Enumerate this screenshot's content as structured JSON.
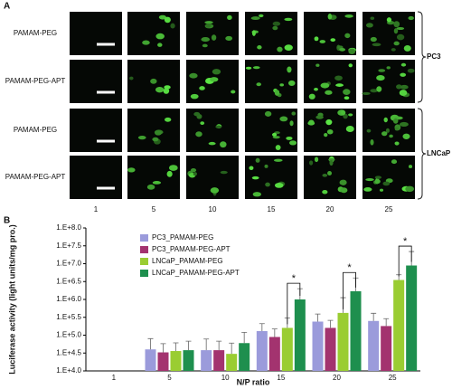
{
  "panel_a": {
    "label": "A",
    "rows": [
      "PAMAM-PEG",
      "PAMAM-PEG-APT",
      "PAMAM-PEG",
      "PAMAM-PEG-APT"
    ],
    "columns": [
      "1",
      "5",
      "10",
      "15",
      "20",
      "25"
    ],
    "groups": [
      "PC3",
      "LNCaP"
    ]
  },
  "chart_data": {
    "type": "bar",
    "panel_label": "B",
    "x_label": "N/P ratio",
    "y_label": "Luciferase activity (light units/mg pro.)",
    "categories": [
      "1",
      "5",
      "10",
      "15",
      "20",
      "25"
    ],
    "log_scale": true,
    "ylim": [
      10000,
      100000000
    ],
    "yticks": [
      {
        "value": 10000,
        "label": "1.E+4.0"
      },
      {
        "value": 31623,
        "label": "1.E+4.5"
      },
      {
        "value": 100000,
        "label": "1.E+5.0"
      },
      {
        "value": 316228,
        "label": "1.E+5.5"
      },
      {
        "value": 1000000,
        "label": "1.E+6.0"
      },
      {
        "value": 3162278,
        "label": "1.E+6.5"
      },
      {
        "value": 10000000,
        "label": "1.E+7.0"
      },
      {
        "value": 31622777,
        "label": "1.E+7.5"
      },
      {
        "value": 100000000,
        "label": "1.E+8.0"
      }
    ],
    "series": [
      {
        "name": "PC3_PAMAM-PEG",
        "color": "#9b9bdb",
        "values": [
          null,
          40000,
          38000,
          130000,
          240000,
          250000
        ],
        "errors": [
          null,
          40000,
          40000,
          80000,
          150000,
          160000
        ]
      },
      {
        "name": "PC3_PAMAM-PEG-APT",
        "color": "#a3336f",
        "values": [
          null,
          33000,
          38000,
          89000,
          160000,
          180000
        ],
        "errors": [
          null,
          25000,
          30000,
          60000,
          100000,
          110000
        ]
      },
      {
        "name": "LNCaP_PAMAM-PEG",
        "color": "#9acd32",
        "values": [
          null,
          36000,
          30000,
          160000,
          420000,
          3500000
        ],
        "errors": [
          null,
          25000,
          30000,
          140000,
          700000,
          1400000
        ]
      },
      {
        "name": "LNCaP_PAMAM-PEG-APT",
        "color": "#1e8f4e",
        "values": [
          null,
          38000,
          60000,
          1000000,
          1700000,
          8900000
        ],
        "errors": [
          null,
          30000,
          60000,
          1000000,
          2300000,
          13000000
        ]
      }
    ],
    "annotations": [
      "*",
      "*",
      "*"
    ],
    "legend": "upper-left"
  }
}
